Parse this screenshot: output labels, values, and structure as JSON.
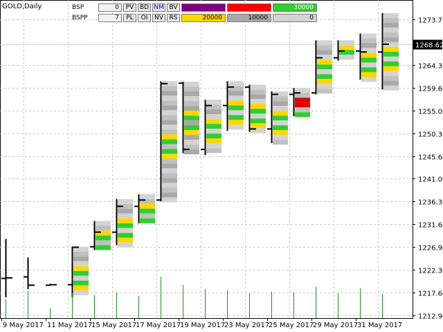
{
  "window": {
    "symbol": "GOLD,Daily"
  },
  "panel": {
    "rows": [
      {
        "label": "BSP",
        "count": "0",
        "buttons": [
          "PV",
          "BD",
          "NM",
          "BV"
        ],
        "values": [
          {
            "text": "",
            "bg": "#800080",
            "fg": "#ffffff"
          },
          {
            "text": "",
            "bg": "#ff0000",
            "fg": "#ffffff"
          },
          {
            "text": "30000",
            "bg": "#32cd32",
            "fg": "#ffffff"
          }
        ]
      },
      {
        "label": "BSPP",
        "count": "7",
        "buttons": [
          "PL",
          "OI",
          "NV",
          "RS"
        ],
        "values": [
          {
            "text": "20000",
            "bg": "#ffd700",
            "fg": "#000000"
          },
          {
            "text": "10000",
            "bg": "#a9a9a9",
            "fg": "#000000"
          },
          {
            "text": "0",
            "bg": "#d3d3d3",
            "fg": "#000000"
          }
        ]
      }
    ]
  },
  "chart_data": {
    "type": "candlestick",
    "symbol": "GOLD",
    "timeframe": "Daily",
    "price_axis": {
      "ticks": [
        "1273.70",
        "1268.62",
        "1264.30",
        "1259.60",
        "1255.00",
        "1250.30",
        "1245.60",
        "1241.00",
        "1236.30",
        "1231.60",
        "1226.90",
        "1222.30",
        "1217.60",
        "1212.90"
      ],
      "current_price": "1268.62",
      "ylim": [
        1212.9,
        1275.5
      ]
    },
    "time_axis": {
      "ticks": [
        "9 May 2017",
        "11 May 2017",
        "15 May 2017",
        "17 May 2017",
        "19 May 2017",
        "23 May 2017",
        "25 May 2017",
        "29 May 2017",
        "31 May 2017"
      ]
    },
    "grid": true,
    "bars": [
      {
        "open": 1220.5,
        "high": 1228.6,
        "low": 1216.6,
        "close": 1220.6,
        "volume": 0.23
      },
      {
        "open": 1220.8,
        "high": 1224.8,
        "low": 1218.3,
        "close": 1219.1,
        "volume": 0.33
      },
      {
        "open": 1219.1,
        "high": 1219.4,
        "low": 1219.0,
        "close": 1219.2,
        "volume": 0.12
      },
      {
        "open": 1219.2,
        "high": 1227.0,
        "low": 1216.6,
        "close": 1226.9,
        "volume": 0.3
      },
      {
        "open": 1227.0,
        "high": 1232.3,
        "low": 1226.3,
        "close": 1230.0,
        "volume": 0.28
      },
      {
        "open": 1230.0,
        "high": 1236.8,
        "low": 1227.3,
        "close": 1235.3,
        "volume": 0.31
      },
      {
        "open": 1235.3,
        "high": 1237.8,
        "low": 1231.8,
        "close": 1236.6,
        "volume": 0.27
      },
      {
        "open": 1236.6,
        "high": 1261.0,
        "low": 1236.3,
        "close": 1260.5,
        "volume": 0.5
      },
      {
        "open": 1260.6,
        "high": 1260.9,
        "low": 1246.2,
        "close": 1247.0,
        "volume": 0.4
      },
      {
        "open": 1247.0,
        "high": 1257.2,
        "low": 1245.8,
        "close": 1256.0,
        "volume": 0.35
      },
      {
        "open": 1256.0,
        "high": 1261.0,
        "low": 1250.8,
        "close": 1259.8,
        "volume": 0.34
      },
      {
        "open": 1259.8,
        "high": 1260.3,
        "low": 1250.6,
        "close": 1251.2,
        "volume": 0.3
      },
      {
        "open": 1251.2,
        "high": 1258.9,
        "low": 1248.3,
        "close": 1258.3,
        "volume": 0.32
      },
      {
        "open": 1258.3,
        "high": 1259.6,
        "low": 1253.8,
        "close": 1258.6,
        "volume": 0.31
      },
      {
        "open": 1258.6,
        "high": 1269.4,
        "low": 1258.3,
        "close": 1265.8,
        "volume": 0.38
      },
      {
        "open": 1265.8,
        "high": 1269.4,
        "low": 1265.2,
        "close": 1267.2,
        "volume": 0.3
      },
      {
        "open": 1267.2,
        "high": 1270.8,
        "low": 1261.3,
        "close": 1267.0,
        "volume": 0.36
      },
      {
        "open": 1267.0,
        "high": 1275.0,
        "low": 1259.3,
        "close": 1268.6,
        "volume": 0.29
      }
    ]
  }
}
